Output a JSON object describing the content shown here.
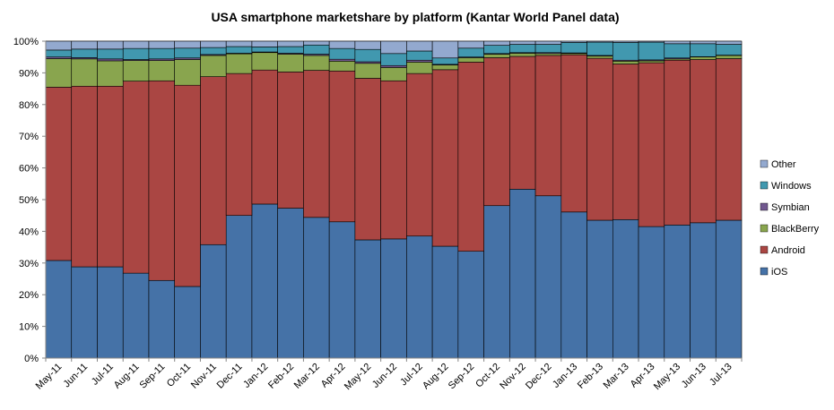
{
  "chart_data": {
    "type": "stacked-bar",
    "title": "USA smartphone marketshare by platform (Kantar World Panel data)",
    "xlabel": "",
    "ylabel": "",
    "ylim": [
      0,
      100
    ],
    "y_ticks": [
      "0%",
      "10%",
      "20%",
      "30%",
      "40%",
      "50%",
      "60%",
      "70%",
      "80%",
      "90%",
      "100%"
    ],
    "grid": true,
    "legend_position": "right",
    "categories": [
      "May-11",
      "Jun-11",
      "Jul-11",
      "Aug-11",
      "Sep-11",
      "Oct-11",
      "Nov-11",
      "Dec-11",
      "Jan-12",
      "Feb-12",
      "Mar-12",
      "Apr-12",
      "May-12",
      "Jun-12",
      "Jul-12",
      "Aug-12",
      "Sep-12",
      "Oct-12",
      "Nov-12",
      "Dec-12",
      "Jan-13",
      "Feb-13",
      "Mar-13",
      "Apr-13",
      "May-13",
      "Jun-13",
      "Jul-13"
    ],
    "series": [
      {
        "name": "iOS",
        "color": "#4572A7",
        "values": [
          30.8,
          28.8,
          28.8,
          26.8,
          24.5,
          22.6,
          35.8,
          45.0,
          48.6,
          47.3,
          44.4,
          43.0,
          37.3,
          37.6,
          38.5,
          35.3,
          33.7,
          48.1,
          53.3,
          51.2,
          46.1,
          43.5,
          43.7,
          41.5,
          42.0,
          42.7,
          43.5
        ]
      },
      {
        "name": "Android",
        "color": "#AA4643",
        "values": [
          54.7,
          57.0,
          57.0,
          60.6,
          63.0,
          63.5,
          53.0,
          44.8,
          42.3,
          43.0,
          46.4,
          47.6,
          51.0,
          49.9,
          51.3,
          55.7,
          59.7,
          46.7,
          41.9,
          44.3,
          49.6,
          51.1,
          49.1,
          51.7,
          52.0,
          51.5,
          51.0
        ]
      },
      {
        "name": "BlackBerry",
        "color": "#89A54E",
        "values": [
          9.0,
          8.6,
          8.0,
          6.5,
          6.4,
          8.1,
          6.7,
          6.2,
          5.5,
          5.6,
          4.7,
          3.1,
          4.7,
          4.2,
          3.6,
          1.5,
          1.4,
          1.1,
          1.0,
          0.6,
          0.4,
          0.7,
          0.9,
          0.6,
          0.4,
          0.8,
          1.0
        ]
      },
      {
        "name": "Symbian",
        "color": "#71588F",
        "values": [
          0.5,
          0.4,
          0.6,
          0.3,
          0.5,
          0.5,
          0.3,
          0.2,
          0.2,
          0.3,
          0.4,
          0.6,
          0.5,
          0.6,
          0.6,
          0.2,
          0.2,
          0.2,
          0.2,
          0.3,
          0.2,
          0.2,
          0.3,
          0.3,
          0.3,
          0.1,
          0.1
        ]
      },
      {
        "name": "Windows",
        "color": "#4198AF",
        "values": [
          2.2,
          2.7,
          3.1,
          3.5,
          3.3,
          3.1,
          2.2,
          2.1,
          1.6,
          2.1,
          2.9,
          3.4,
          3.9,
          3.8,
          2.9,
          2.0,
          2.8,
          2.6,
          2.6,
          2.6,
          3.3,
          4.2,
          5.6,
          5.6,
          4.5,
          4.1,
          3.4
        ]
      },
      {
        "name": "Other",
        "color": "#93A9CF",
        "values": [
          2.8,
          2.5,
          2.5,
          2.3,
          2.3,
          2.2,
          2.0,
          1.7,
          1.8,
          1.7,
          1.2,
          2.3,
          2.6,
          3.9,
          3.1,
          5.3,
          2.2,
          1.3,
          1.0,
          1.0,
          0.4,
          0.3,
          0.4,
          0.3,
          0.8,
          0.8,
          1.0
        ]
      }
    ],
    "legend_order": [
      "Other",
      "Windows",
      "Symbian",
      "BlackBerry",
      "Android",
      "iOS"
    ]
  }
}
